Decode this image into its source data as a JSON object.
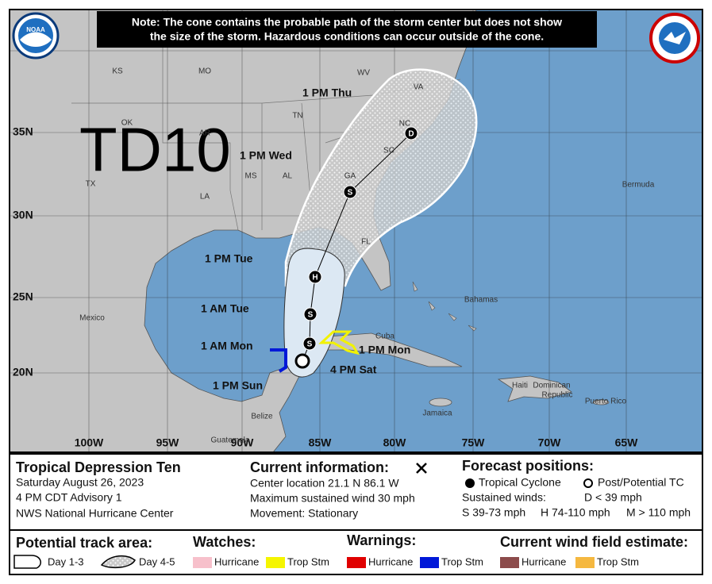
{
  "header_note": [
    "Note: The cone contains the probable path of the storm center but does not show",
    "the size of the storm. Hazardous conditions can occur outside of the cone."
  ],
  "logos": {
    "noaa": "NOAA"
  },
  "storm_label": "TD10",
  "latitude_labels": [
    "35N",
    "30N",
    "25N",
    "20N"
  ],
  "longitude_labels": [
    "100W",
    "95W",
    "90W",
    "85W",
    "80W",
    "75W",
    "70W",
    "65W"
  ],
  "places": [
    "KS",
    "MO",
    "WV",
    "VA",
    "TN",
    "NC",
    "SC",
    "OK",
    "AR",
    "MS",
    "AL",
    "GA",
    "TX",
    "LA",
    "FL",
    "Mexico",
    "Cuba",
    "Bahamas",
    "Bermuda",
    "Haiti",
    "Dominican",
    "Republic",
    "Jamaica",
    "Puerto Rico",
    "Belize",
    "Guatemala"
  ],
  "forecast": [
    {
      "time": "1 PM Thu",
      "symbol": "D"
    },
    {
      "time": "1 PM Wed",
      "symbol": "S"
    },
    {
      "time": "1 PM Tue",
      "symbol": "H"
    },
    {
      "time": "1 AM Tue",
      "symbol": "S"
    },
    {
      "time": "1 AM Mon",
      "symbol": "S"
    },
    {
      "time": "1 PM Mon"
    },
    {
      "time": "1 PM Sun"
    },
    {
      "time": "4 PM Sat"
    }
  ],
  "info": {
    "storm": [
      "Tropical Depression Ten",
      "Saturday August 26, 2023",
      "4 PM CDT Advisory 1",
      "NWS National Hurricane Center"
    ],
    "current_title": "Current information:",
    "current": [
      "Center location 21.1 N 86.1 W",
      "Maximum sustained wind 30 mph",
      "Movement: Stationary"
    ],
    "forecast_title": "Forecast positions:",
    "tropical_cyclone": "Tropical Cyclone",
    "post_potential": "Post/Potential TC",
    "sustained_winds": "Sustained winds:",
    "winds": [
      "D < 39 mph",
      "S 39-73 mph",
      "H 74-110 mph",
      "M > 110 mph"
    ]
  },
  "legend": {
    "track_title": "Potential track area:",
    "day13": "Day 1-3",
    "day45": "Day 4-5",
    "watches_title": "Watches:",
    "watches": [
      "Hurricane",
      "Trop Stm"
    ],
    "warnings_title": "Warnings:",
    "warnings": [
      "Hurricane",
      "Trop Stm"
    ],
    "wind_title": "Current wind field estimate:",
    "wind": [
      "Hurricane",
      "Trop Stm"
    ]
  }
}
